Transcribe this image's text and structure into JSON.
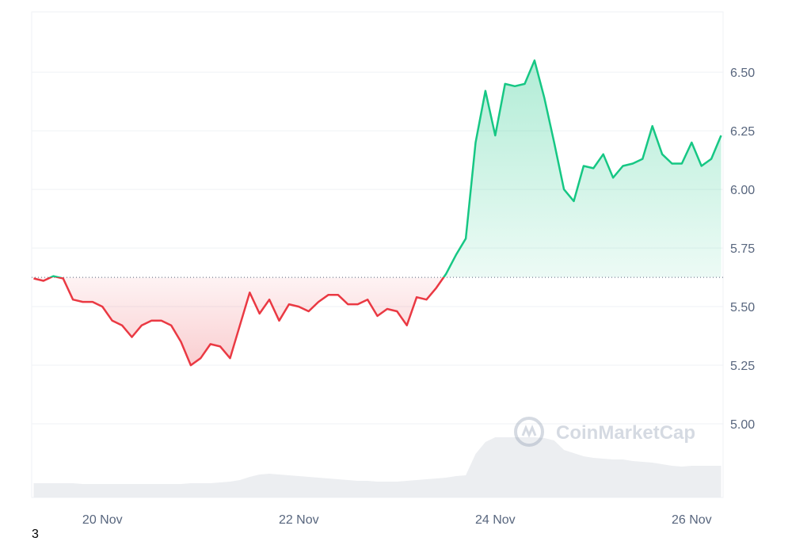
{
  "chart_data": {
    "type": "line",
    "watermark": "CoinMarketCap",
    "x": [
      19.3,
      19.4,
      19.5,
      19.6,
      19.7,
      19.8,
      19.9,
      20.0,
      20.1,
      20.2,
      20.3,
      20.4,
      20.5,
      20.6,
      20.7,
      20.8,
      20.9,
      21.0,
      21.1,
      21.2,
      21.3,
      21.4,
      21.5,
      21.6,
      21.7,
      21.8,
      21.9,
      22.0,
      22.1,
      22.2,
      22.3,
      22.4,
      22.5,
      22.6,
      22.7,
      22.8,
      22.9,
      23.0,
      23.1,
      23.2,
      23.3,
      23.4,
      23.5,
      23.6,
      23.7,
      23.8,
      23.9,
      24.0,
      24.1,
      24.2,
      24.3,
      24.4,
      24.5,
      24.6,
      24.7,
      24.8,
      24.9,
      25.0,
      25.1,
      25.2,
      25.3,
      25.4,
      25.5,
      25.6,
      25.7,
      25.8,
      25.9,
      26.0,
      26.1,
      26.2,
      26.3
    ],
    "series": [
      {
        "name": "price",
        "color_up": "#16c784",
        "color_down": "#ea3943",
        "values": [
          5.62,
          5.61,
          5.63,
          5.62,
          5.53,
          5.52,
          5.52,
          5.5,
          5.44,
          5.42,
          5.37,
          5.42,
          5.44,
          5.44,
          5.42,
          5.35,
          5.25,
          5.28,
          5.34,
          5.33,
          5.28,
          5.42,
          5.56,
          5.47,
          5.53,
          5.44,
          5.51,
          5.5,
          5.48,
          5.52,
          5.55,
          5.55,
          5.51,
          5.51,
          5.53,
          5.46,
          5.49,
          5.48,
          5.42,
          5.54,
          5.53,
          5.58,
          5.64,
          5.72,
          5.79,
          6.2,
          6.42,
          6.23,
          6.45,
          6.44,
          6.45,
          6.55,
          6.39,
          6.2,
          6.0,
          5.95,
          6.1,
          6.09,
          6.15,
          6.05,
          6.1,
          6.11,
          6.13,
          6.27,
          6.15,
          6.11,
          6.11,
          6.2,
          6.1,
          6.13,
          6.23
        ]
      },
      {
        "name": "volume",
        "color": "#eceef1",
        "axis": "y2",
        "values": [
          18,
          18,
          18,
          18,
          18,
          17,
          17,
          17,
          17,
          17,
          17,
          17,
          17,
          17,
          17,
          17,
          18,
          18,
          18,
          19,
          20,
          22,
          26,
          29,
          30,
          29,
          28,
          27,
          26,
          25,
          24,
          23,
          22,
          21,
          21,
          20,
          20,
          20,
          21,
          22,
          23,
          24,
          25,
          27,
          28,
          55,
          70,
          76,
          76,
          76,
          76,
          76,
          75,
          72,
          60,
          56,
          52,
          50,
          49,
          48,
          48,
          46,
          45,
          44,
          42,
          40,
          39,
          40,
          40,
          40,
          40
        ]
      }
    ],
    "baseline": 5.625,
    "xlim": [
      19.28,
      26.32
    ],
    "xticks": [
      {
        "value": 20,
        "label": "20 Nov"
      },
      {
        "value": 22,
        "label": "22 Nov"
      },
      {
        "value": 24,
        "label": "24 Nov"
      },
      {
        "value": 26,
        "label": "26 Nov"
      }
    ],
    "ylim": [
      4.686,
      6.757
    ],
    "yticks": [
      {
        "value": 5,
        "label": "5.00"
      },
      {
        "value": 5.25,
        "label": "5.25"
      },
      {
        "value": 5.5,
        "label": "5.50"
      },
      {
        "value": 5.75,
        "label": "5.75"
      },
      {
        "value": 6,
        "label": "6.00"
      },
      {
        "value": 6.25,
        "label": "6.25"
      },
      {
        "value": 6.5,
        "label": "6.50"
      }
    ],
    "y2lim": [
      0,
      100
    ],
    "grid": true
  },
  "footer": "3"
}
